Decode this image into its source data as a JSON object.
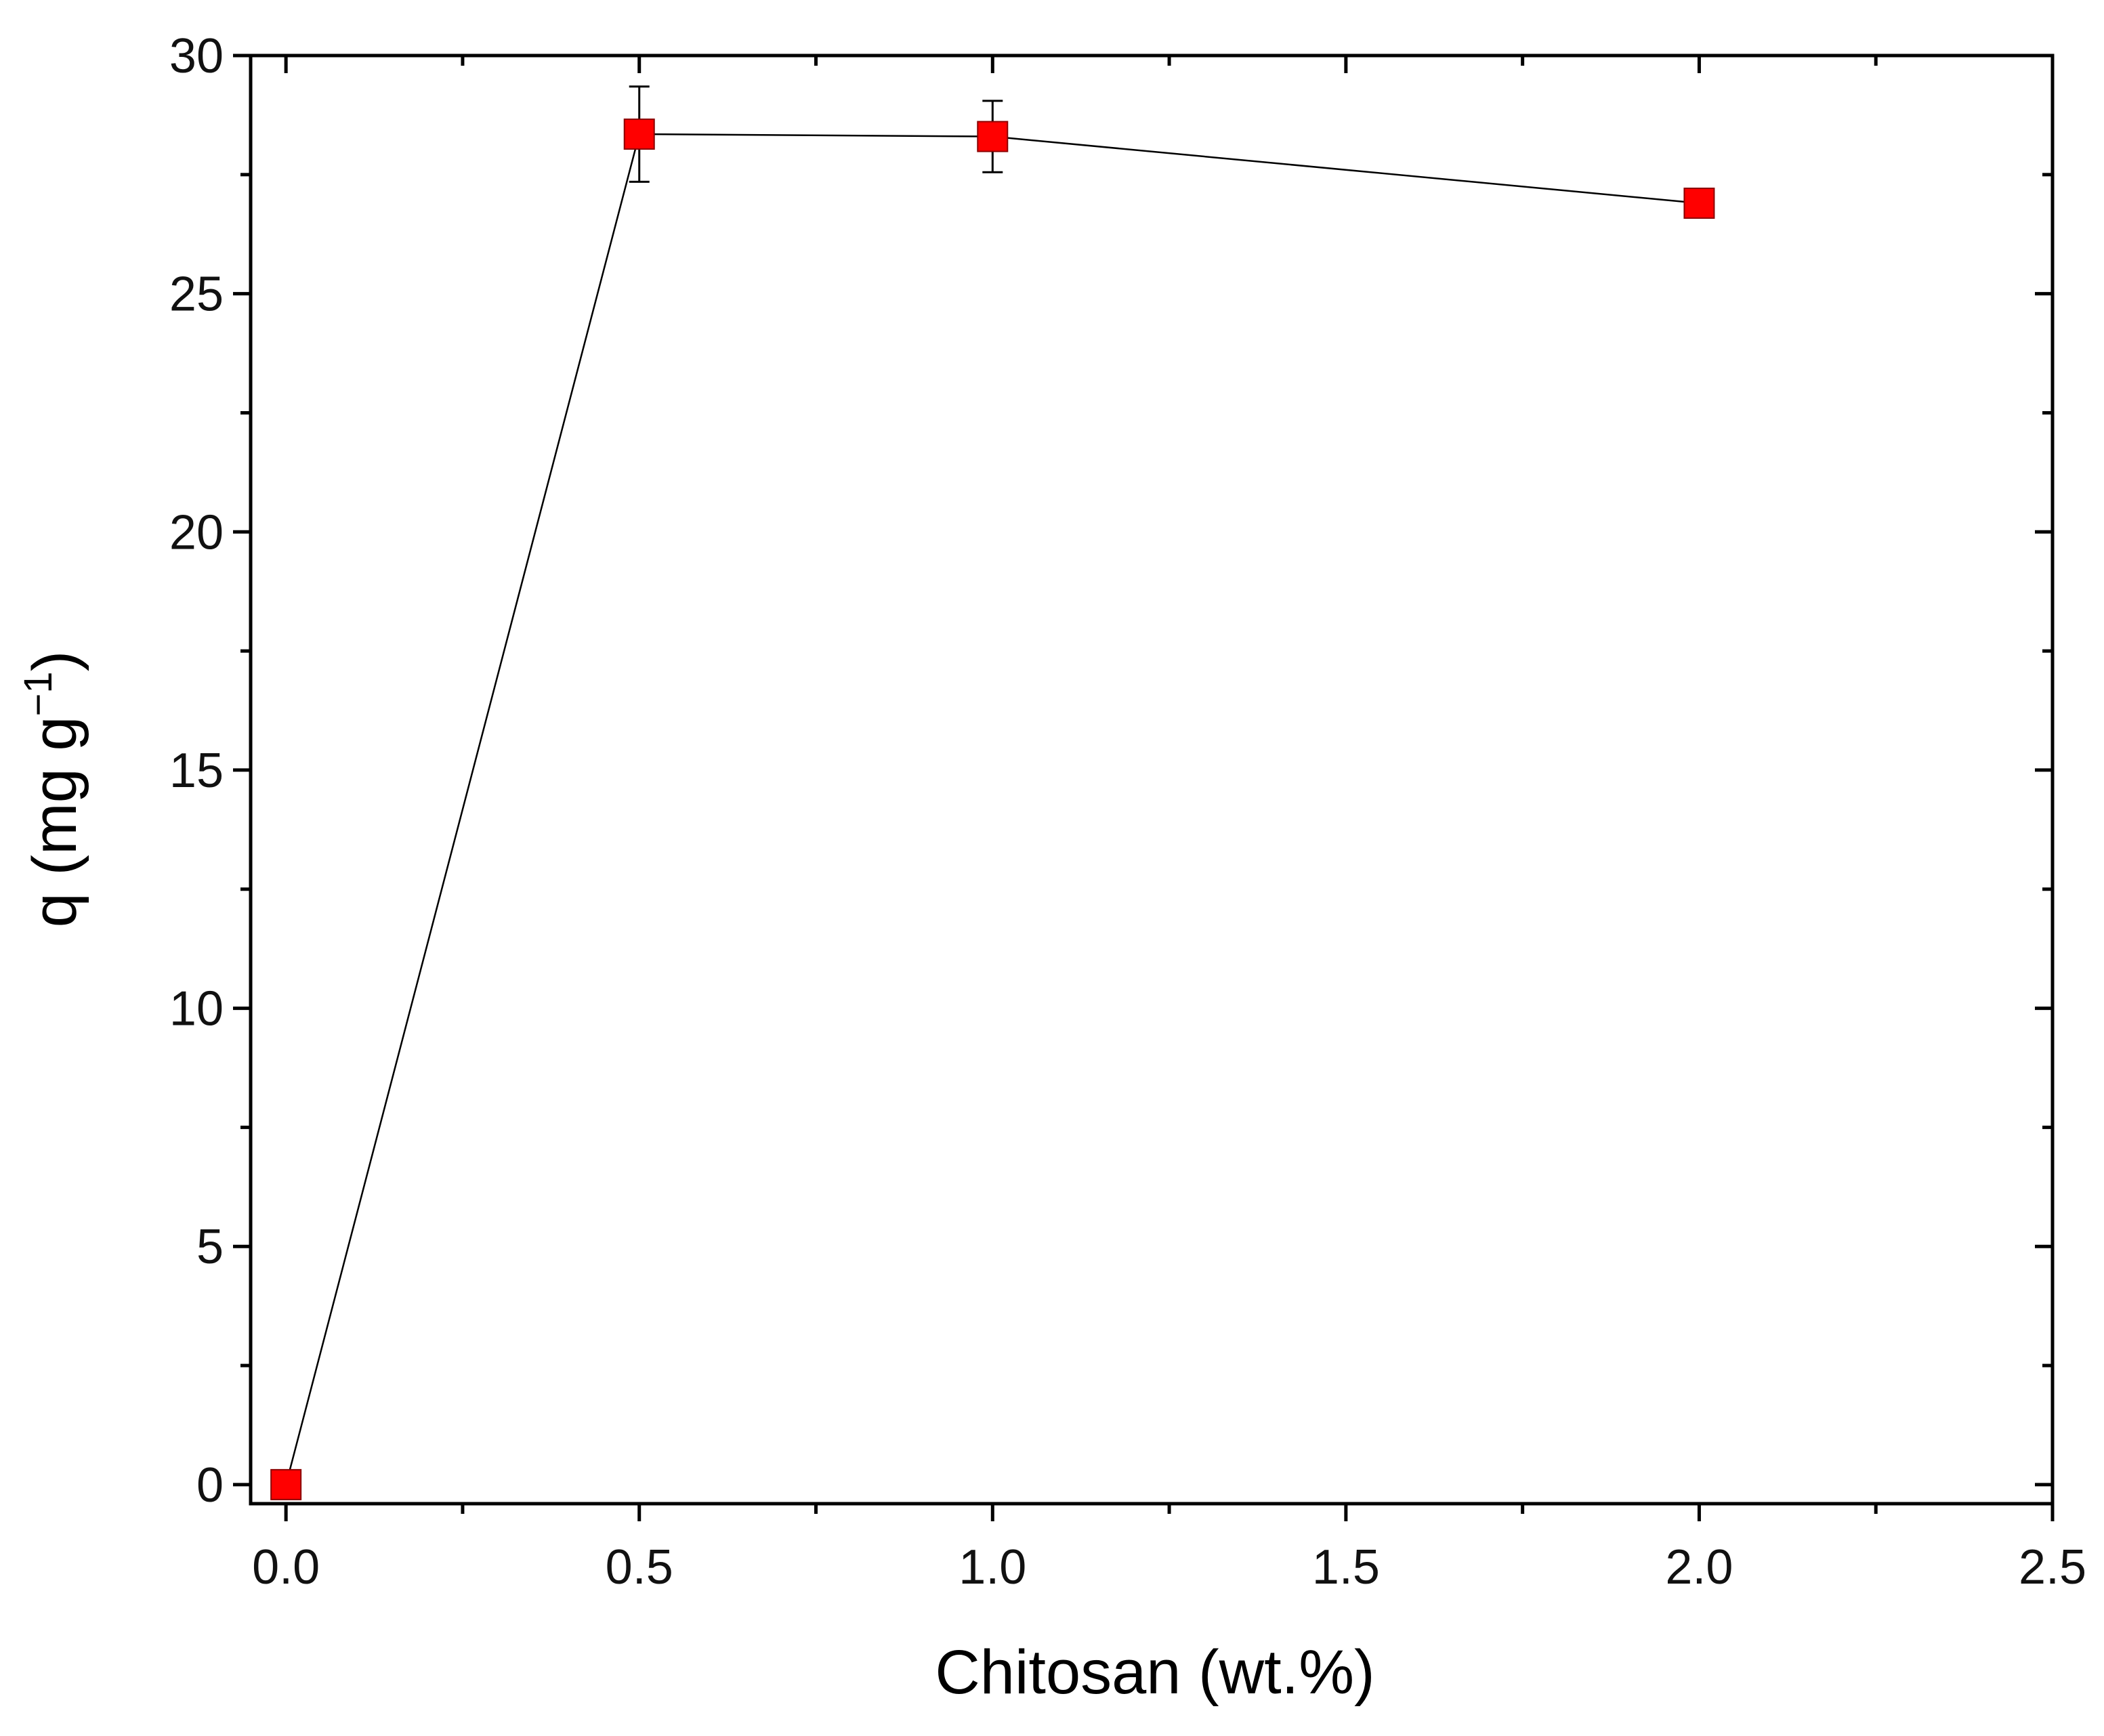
{
  "chart_data": {
    "type": "line",
    "xlabel": "Chitosan (wt.%)",
    "ylabel": "q (mg g",
    "ylabel_sup": "−1",
    "ylabel_close": ")",
    "xlim": [
      -0.05,
      2.5
    ],
    "ylim": [
      -0.4,
      30
    ],
    "x_ticks": [
      0.0,
      0.5,
      1.0,
      1.5,
      2.0,
      2.5
    ],
    "x_tick_labels": [
      "0.0",
      "0.5",
      "1.0",
      "1.5",
      "2.0",
      "2.5"
    ],
    "y_ticks": [
      0,
      5,
      10,
      15,
      20,
      25,
      30
    ],
    "y_tick_labels": [
      "0",
      "5",
      "10",
      "15",
      "20",
      "25",
      "30"
    ],
    "grid": false,
    "marker": "square",
    "marker_color": "#ff0000",
    "line_color": "#000000",
    "series": [
      {
        "x": [
          0.0,
          0.5,
          1.0,
          2.0
        ],
        "y": [
          0.0,
          28.35,
          28.3,
          26.9
        ],
        "error": [
          0.0,
          1.0,
          0.75,
          0.3
        ]
      }
    ]
  }
}
